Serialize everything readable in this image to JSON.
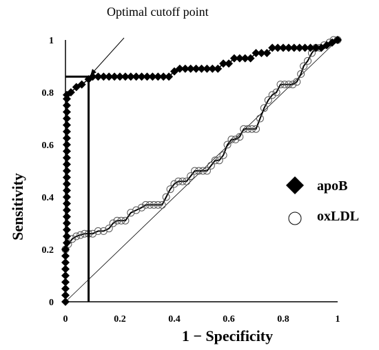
{
  "chart_data": {
    "type": "line",
    "title": "",
    "xlabel": "1 − Specificity",
    "ylabel": "Sensitivity",
    "xlim": [
      0,
      1
    ],
    "ylim": [
      0,
      1
    ],
    "x_ticks": [
      "0",
      "0.2",
      "0.4",
      "0.6",
      "0.8",
      "1"
    ],
    "y_ticks": [
      "0",
      "0.2",
      "0.4",
      "0.6",
      "0.8",
      "1"
    ],
    "annotation": "Optimal cutoff point",
    "cutoff": {
      "x": 0.085,
      "y": 0.86
    },
    "legend_position": "right",
    "grid": false,
    "series": [
      {
        "name": "apoB",
        "marker": "filled-diamond",
        "color": "#000000",
        "points": [
          [
            0,
            0
          ],
          [
            0,
            0.025
          ],
          [
            0,
            0.05
          ],
          [
            0,
            0.075
          ],
          [
            0,
            0.1
          ],
          [
            0,
            0.125
          ],
          [
            0,
            0.15
          ],
          [
            0,
            0.175
          ],
          [
            0,
            0.2
          ],
          [
            0.005,
            0.225
          ],
          [
            0.005,
            0.25
          ],
          [
            0.005,
            0.275
          ],
          [
            0.005,
            0.3
          ],
          [
            0.005,
            0.325
          ],
          [
            0.005,
            0.35
          ],
          [
            0.005,
            0.375
          ],
          [
            0.005,
            0.4
          ],
          [
            0.005,
            0.425
          ],
          [
            0.005,
            0.45
          ],
          [
            0.005,
            0.475
          ],
          [
            0.005,
            0.5
          ],
          [
            0.005,
            0.525
          ],
          [
            0.005,
            0.55
          ],
          [
            0.005,
            0.575
          ],
          [
            0.005,
            0.6
          ],
          [
            0.005,
            0.625
          ],
          [
            0.005,
            0.65
          ],
          [
            0.005,
            0.675
          ],
          [
            0.005,
            0.7
          ],
          [
            0.005,
            0.725
          ],
          [
            0.005,
            0.75
          ],
          [
            0.005,
            0.775
          ],
          [
            0.005,
            0.79
          ],
          [
            0.02,
            0.8
          ],
          [
            0.04,
            0.82
          ],
          [
            0.06,
            0.83
          ],
          [
            0.085,
            0.85
          ],
          [
            0.1,
            0.86
          ],
          [
            0.12,
            0.86
          ],
          [
            0.14,
            0.86
          ],
          [
            0.16,
            0.86
          ],
          [
            0.18,
            0.86
          ],
          [
            0.2,
            0.86
          ],
          [
            0.22,
            0.86
          ],
          [
            0.24,
            0.86
          ],
          [
            0.26,
            0.86
          ],
          [
            0.28,
            0.86
          ],
          [
            0.3,
            0.86
          ],
          [
            0.32,
            0.86
          ],
          [
            0.34,
            0.86
          ],
          [
            0.36,
            0.86
          ],
          [
            0.38,
            0.86
          ],
          [
            0.4,
            0.88
          ],
          [
            0.42,
            0.89
          ],
          [
            0.44,
            0.89
          ],
          [
            0.46,
            0.89
          ],
          [
            0.48,
            0.89
          ],
          [
            0.5,
            0.89
          ],
          [
            0.52,
            0.89
          ],
          [
            0.54,
            0.89
          ],
          [
            0.56,
            0.89
          ],
          [
            0.58,
            0.91
          ],
          [
            0.6,
            0.91
          ],
          [
            0.62,
            0.93
          ],
          [
            0.64,
            0.93
          ],
          [
            0.66,
            0.93
          ],
          [
            0.68,
            0.93
          ],
          [
            0.7,
            0.95
          ],
          [
            0.72,
            0.95
          ],
          [
            0.74,
            0.95
          ],
          [
            0.76,
            0.97
          ],
          [
            0.78,
            0.97
          ],
          [
            0.8,
            0.97
          ],
          [
            0.82,
            0.97
          ],
          [
            0.84,
            0.97
          ],
          [
            0.86,
            0.97
          ],
          [
            0.88,
            0.97
          ],
          [
            0.9,
            0.97
          ],
          [
            0.92,
            0.97
          ],
          [
            0.94,
            0.97
          ],
          [
            0.96,
            0.98
          ],
          [
            0.98,
            0.99
          ],
          [
            1,
            1
          ]
        ]
      },
      {
        "name": "oxLDL",
        "marker": "open-circle",
        "color": "#000000",
        "points": [
          [
            0,
            0.2
          ],
          [
            0.01,
            0.22
          ],
          [
            0.025,
            0.24
          ],
          [
            0.04,
            0.25
          ],
          [
            0.055,
            0.255
          ],
          [
            0.07,
            0.26
          ],
          [
            0.085,
            0.26
          ],
          [
            0.1,
            0.26
          ],
          [
            0.12,
            0.27
          ],
          [
            0.14,
            0.27
          ],
          [
            0.16,
            0.28
          ],
          [
            0.175,
            0.3
          ],
          [
            0.19,
            0.31
          ],
          [
            0.205,
            0.31
          ],
          [
            0.22,
            0.31
          ],
          [
            0.24,
            0.34
          ],
          [
            0.26,
            0.35
          ],
          [
            0.28,
            0.36
          ],
          [
            0.295,
            0.37
          ],
          [
            0.31,
            0.37
          ],
          [
            0.325,
            0.37
          ],
          [
            0.34,
            0.37
          ],
          [
            0.355,
            0.37
          ],
          [
            0.37,
            0.4
          ],
          [
            0.385,
            0.43
          ],
          [
            0.4,
            0.45
          ],
          [
            0.415,
            0.46
          ],
          [
            0.43,
            0.46
          ],
          [
            0.445,
            0.46
          ],
          [
            0.46,
            0.48
          ],
          [
            0.475,
            0.5
          ],
          [
            0.49,
            0.5
          ],
          [
            0.505,
            0.5
          ],
          [
            0.52,
            0.5
          ],
          [
            0.535,
            0.52
          ],
          [
            0.55,
            0.54
          ],
          [
            0.565,
            0.54
          ],
          [
            0.58,
            0.56
          ],
          [
            0.595,
            0.6
          ],
          [
            0.61,
            0.62
          ],
          [
            0.625,
            0.62
          ],
          [
            0.64,
            0.63
          ],
          [
            0.655,
            0.66
          ],
          [
            0.67,
            0.66
          ],
          [
            0.685,
            0.66
          ],
          [
            0.7,
            0.66
          ],
          [
            0.715,
            0.7
          ],
          [
            0.73,
            0.74
          ],
          [
            0.745,
            0.77
          ],
          [
            0.76,
            0.79
          ],
          [
            0.775,
            0.8
          ],
          [
            0.79,
            0.83
          ],
          [
            0.805,
            0.83
          ],
          [
            0.82,
            0.83
          ],
          [
            0.835,
            0.83
          ],
          [
            0.85,
            0.84
          ],
          [
            0.865,
            0.87
          ],
          [
            0.875,
            0.9
          ],
          [
            0.89,
            0.92
          ],
          [
            0.905,
            0.95
          ],
          [
            0.92,
            0.97
          ],
          [
            0.935,
            0.97
          ],
          [
            0.95,
            0.98
          ],
          [
            0.97,
            0.99
          ],
          [
            0.985,
            1
          ],
          [
            1,
            1
          ]
        ]
      }
    ]
  }
}
